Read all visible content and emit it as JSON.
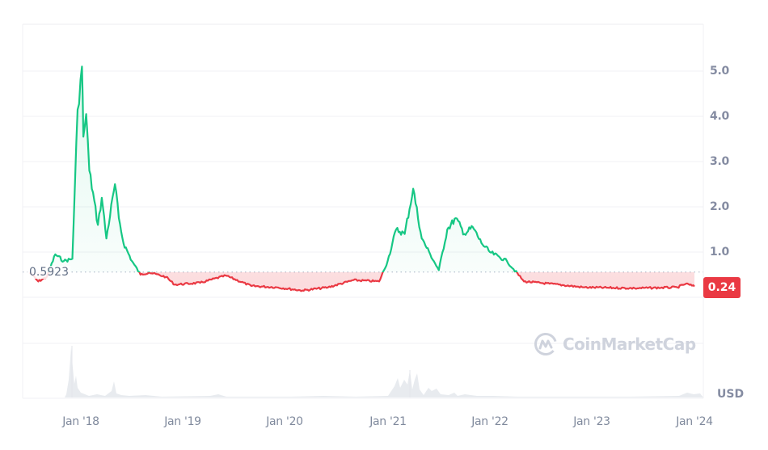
{
  "chart_data": {
    "type": "line",
    "title": "",
    "xlabel": "",
    "ylabel": "USD",
    "currency": "USD",
    "ylim": [
      0,
      5.5
    ],
    "y_ticks": [
      "5.0",
      "4.0",
      "3.0",
      "2.0",
      "1.0"
    ],
    "x_ticks": [
      "Jan '18",
      "Jan '19",
      "Jan '20",
      "Jan '21",
      "Jan '22",
      "Jan '23",
      "Jan '24"
    ],
    "baseline_value": 0.5923,
    "baseline_label": "0.5923",
    "current_price": 0.24,
    "current_price_label": "0.24",
    "grid": true,
    "colors": {
      "up": "#16c784",
      "down": "#ea3943",
      "grid": "#f0f1f4",
      "axis_text": "#858ca2"
    },
    "series": [
      {
        "name": "Price (USD)",
        "points": [
          [
            "2017-07",
            0.55
          ],
          [
            "2017-08",
            0.35
          ],
          [
            "2017-09",
            0.45
          ],
          [
            "2017-10",
            0.95
          ],
          [
            "2017-11",
            0.8
          ],
          [
            "2017-12",
            0.85
          ],
          [
            "2017-12-20",
            4.15
          ],
          [
            "2018-01-05",
            5.1
          ],
          [
            "2018-01-10",
            3.55
          ],
          [
            "2018-01-20",
            4.05
          ],
          [
            "2018-02",
            2.8
          ],
          [
            "2018-03",
            1.6
          ],
          [
            "2018-03-15",
            2.2
          ],
          [
            "2018-04",
            1.3
          ],
          [
            "2018-05",
            2.5
          ],
          [
            "2018-05-15",
            1.75
          ],
          [
            "2018-06",
            1.2
          ],
          [
            "2018-07",
            0.8
          ],
          [
            "2018-08",
            0.5
          ],
          [
            "2018-09",
            0.55
          ],
          [
            "2018-11",
            0.45
          ],
          [
            "2018-12",
            0.28
          ],
          [
            "2019-03",
            0.32
          ],
          [
            "2019-06",
            0.48
          ],
          [
            "2019-09",
            0.25
          ],
          [
            "2019-12",
            0.22
          ],
          [
            "2020-03",
            0.15
          ],
          [
            "2020-06",
            0.22
          ],
          [
            "2020-09",
            0.38
          ],
          [
            "2020-12",
            0.35
          ],
          [
            "2021-01",
            0.8
          ],
          [
            "2021-02",
            1.5
          ],
          [
            "2021-03",
            1.4
          ],
          [
            "2021-04",
            2.4
          ],
          [
            "2021-05",
            1.3
          ],
          [
            "2021-06",
            0.95
          ],
          [
            "2021-07",
            0.6
          ],
          [
            "2021-08",
            1.5
          ],
          [
            "2021-09",
            1.75
          ],
          [
            "2021-10",
            1.4
          ],
          [
            "2021-11",
            1.55
          ],
          [
            "2021-12",
            1.2
          ],
          [
            "2022-01",
            1.0
          ],
          [
            "2022-03",
            0.8
          ],
          [
            "2022-05",
            0.35
          ],
          [
            "2022-08",
            0.3
          ],
          [
            "2022-12",
            0.22
          ],
          [
            "2023-06",
            0.2
          ],
          [
            "2023-11",
            0.22
          ],
          [
            "2023-12",
            0.3
          ],
          [
            "2024-01",
            0.24
          ]
        ]
      },
      {
        "name": "Volume",
        "note": "light gray volume histogram along the bottom; spikes near Jan '18 and early-to-mid 2021"
      }
    ]
  },
  "watermark": {
    "text": "CoinMarketCap"
  }
}
